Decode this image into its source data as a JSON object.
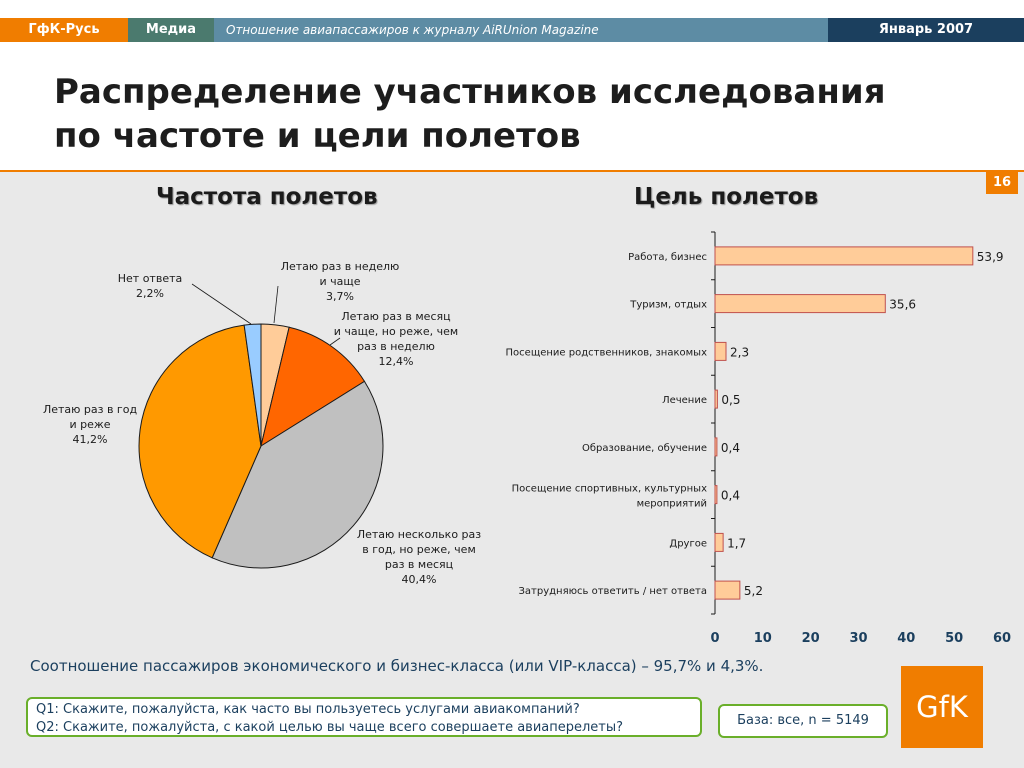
{
  "header": {
    "brand": "ГфК-Русь",
    "media": "Медиа",
    "subtitle": "Отношение авиапассажиров к журналу AiRUnion Magazine",
    "date": "Январь 2007"
  },
  "page": {
    "title_line1": "Распределение участников исследования",
    "title_line2": "по частоте и цели полетов",
    "number": "16"
  },
  "section_titles": {
    "frequency": "Частота полетов",
    "purpose": "Цель полетов"
  },
  "chart_data": [
    {
      "type": "pie",
      "title": "Частота полетов",
      "slices": [
        {
          "label_lines": [
            "Летаю раз в неделю",
            "и чаще"
          ],
          "value": 3.7,
          "value_label": "3,7%",
          "color": "#ffcc99"
        },
        {
          "label_lines": [
            "Летаю раз в месяц",
            "и чаще, но реже, чем",
            "раз в неделю"
          ],
          "value": 12.4,
          "value_label": "12,4%",
          "color": "#ff6600"
        },
        {
          "label_lines": [
            "Летаю несколько раз",
            "в год, но реже, чем",
            "раз в месяц"
          ],
          "value": 40.4,
          "value_label": "40,4%",
          "color": "#c0c0c0"
        },
        {
          "label_lines": [
            "Летаю раз в год",
            "и реже"
          ],
          "value": 41.2,
          "value_label": "41,2%",
          "color": "#ff9900"
        },
        {
          "label_lines": [
            "Нет ответа"
          ],
          "value": 2.2,
          "value_label": "2,2%",
          "color": "#99ccff"
        }
      ]
    },
    {
      "type": "bar",
      "orientation": "horizontal",
      "title": "Цель полетов",
      "categories": [
        [
          "Работа, бизнес"
        ],
        [
          "Туризм, отдых"
        ],
        [
          "Посещение родственников, знакомых"
        ],
        [
          "Лечение"
        ],
        [
          "Образование, обучение"
        ],
        [
          "Посещение спортивных, культурных",
          "мероприятий"
        ],
        [
          "Другое"
        ],
        [
          "Затрудняюсь ответить / нет ответа"
        ]
      ],
      "values": [
        53.9,
        35.6,
        2.3,
        0.5,
        0.4,
        0.4,
        1.7,
        5.2
      ],
      "value_labels": [
        "53,9",
        "35,6",
        "2,3",
        "0,5",
        "0,4",
        "0,4",
        "1,7",
        "5,2"
      ],
      "xlim": [
        0,
        60
      ],
      "xticks": [
        "0",
        "10",
        "20",
        "30",
        "40",
        "50",
        "60"
      ],
      "bar_color": "#ffcc99",
      "bar_stroke": "#c0504d"
    }
  ],
  "footer": {
    "summary": "Соотношение пассажиров экономического и бизнес-класса (или VIP-класса) – 95,7% и 4,3%.",
    "q1": "Q1: Скажите, пожалуйста, как часто вы пользуетесь услугами авиакомпаний?",
    "q2": "Q2: Скажите, пожалуйста, с какой целью вы чаще всего совершаете авиаперелеты?",
    "base": "База: все, n = 5149",
    "logo": "GfK"
  }
}
